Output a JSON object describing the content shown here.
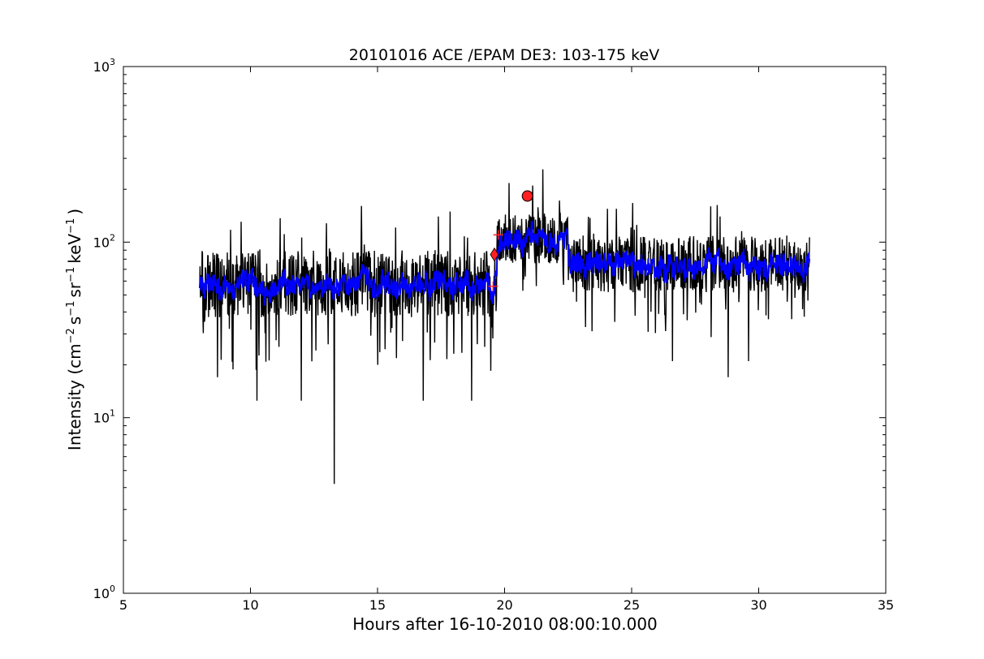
{
  "chart_data": {
    "type": "line",
    "title": "20101016 ACE /EPAM DE3: 103-175 keV",
    "xlabel": "Hours after 16-10-2010 08:00:10.000",
    "ylabel_parts": {
      "main": "Intensity (cm",
      "exp1": "−2",
      "s": "s",
      "exp2": "−1",
      "sr": "sr",
      "exp3": "−1",
      "kev": "keV",
      "exp4": "−1",
      "close": ")"
    },
    "xlim": [
      5,
      35
    ],
    "ylim": [
      1,
      1000
    ],
    "yscale": "log",
    "grid": false,
    "x_ticks": [
      5,
      10,
      15,
      20,
      25,
      30,
      35
    ],
    "x_tick_labels": [
      "5",
      "10",
      "15",
      "20",
      "25",
      "30",
      "35"
    ],
    "y_ticks": [
      1,
      10,
      100,
      1000
    ],
    "y_tick_labels": [
      {
        "base": "10",
        "exp": "0"
      },
      {
        "base": "10",
        "exp": "1"
      },
      {
        "base": "10",
        "exp": "2"
      },
      {
        "base": "10",
        "exp": "3"
      }
    ],
    "series": [
      {
        "color": "#000000",
        "style": "noisy-line",
        "segments": [
          {
            "x_start": 8.0,
            "x_end": 19.7,
            "typical_low": 42,
            "typical_high": 85,
            "median": 58
          },
          {
            "x_start": 19.7,
            "x_end": 22.5,
            "typical_low": 80,
            "typical_high": 135,
            "median": 105
          },
          {
            "x_start": 22.5,
            "x_end": 32.0,
            "typical_low": 55,
            "typical_high": 100,
            "median": 75
          }
        ],
        "notable_points": [
          {
            "x": 13.3,
            "y": 4.2
          },
          {
            "x": 21.5,
            "y": 260
          },
          {
            "x": 21.1,
            "y": 210
          },
          {
            "x": 10.25,
            "y": 12.5
          },
          {
            "x": 12.0,
            "y": 12.5
          },
          {
            "x": 16.8,
            "y": 12.5
          },
          {
            "x": 18.7,
            "y": 12.5
          },
          {
            "x": 28.8,
            "y": 17
          },
          {
            "x": 26.6,
            "y": 21
          },
          {
            "x": 29.6,
            "y": 21
          },
          {
            "x": 8.7,
            "y": 17
          },
          {
            "x": 17.4,
            "y": 140
          },
          {
            "x": 24.4,
            "y": 155
          }
        ]
      },
      {
        "color": "#0000ff",
        "style": "smoothed-line",
        "segments": [
          {
            "x_start": 8.0,
            "x_end": 19.7,
            "median": 58
          },
          {
            "x_start": 19.7,
            "x_end": 22.5,
            "median": 103
          },
          {
            "x_start": 22.5,
            "x_end": 32.0,
            "median": 75
          }
        ]
      }
    ],
    "markers": [
      {
        "type": "circle",
        "x": 20.9,
        "y": 183,
        "color": "#ff2020"
      },
      {
        "type": "diamond",
        "x": 19.6,
        "y": 85,
        "color": "#ff2020"
      },
      {
        "type": "plus",
        "x": 19.75,
        "y": 110,
        "color": "#ff2020"
      },
      {
        "type": "plus",
        "x": 19.55,
        "y": 56,
        "color": "#ff2020"
      }
    ]
  }
}
